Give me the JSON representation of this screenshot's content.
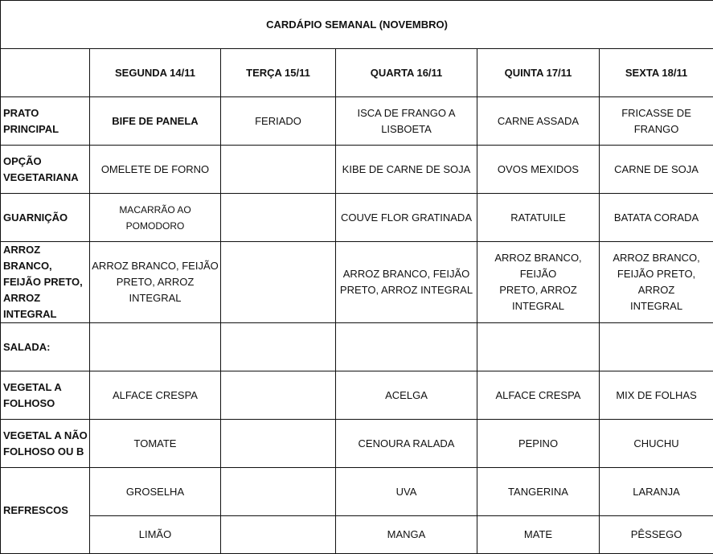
{
  "title": "CARDÁPIO SEMANAL (NOVEMBRO)",
  "days": [
    "SEGUNDA 14/11",
    "TERÇA 15/11",
    "QUARTA 16/11",
    "QUINTA 17/11",
    "SEXTA 18/11"
  ],
  "rows": [
    {
      "label": "PRATO\nPRINCIPAL",
      "cells": [
        "BIFE DE PANELA",
        "FERIADO",
        "ISCA DE FRANGO A LISBOETA",
        "CARNE ASSADA",
        "FRICASSE DE FRANGO"
      ]
    },
    {
      "label": "OPÇÃO\nVEGETARIANA",
      "cells": [
        "OMELETE DE FORNO",
        "",
        "KIBE DE CARNE DE SOJA",
        "OVOS MEXIDOS",
        "CARNE DE SOJA"
      ]
    },
    {
      "label": "GUARNIÇÃO",
      "cells": [
        "MACARRÃO AO POMODORO",
        "",
        "COUVE FLOR GRATINADA",
        "RATATUILE",
        "BATATA CORADA"
      ]
    },
    {
      "label": "ARROZ BRANCO,\nFEIJÃO PRETO,\nARROZ INTEGRAL",
      "cells": [
        "ARROZ BRANCO, FEIJÃO\nPRETO, ARROZ INTEGRAL",
        "",
        "ARROZ BRANCO, FEIJÃO\nPRETO, ARROZ INTEGRAL",
        "ARROZ BRANCO, FEIJÃO\nPRETO, ARROZ\nINTEGRAL",
        "ARROZ BRANCO,\nFEIJÃO PRETO, ARROZ\nINTEGRAL"
      ]
    },
    {
      "label": "SALADA:",
      "cells": [
        "",
        "",
        "",
        "",
        ""
      ]
    },
    {
      "label": "VEGETAL A\nFOLHOSO",
      "cells": [
        "ALFACE CRESPA",
        "",
        "ACELGA",
        "ALFACE CRESPA",
        "MIX DE FOLHAS"
      ]
    },
    {
      "label": "VEGETAL A NÃO\nFOLHOSO OU B",
      "cells": [
        "TOMATE",
        "",
        "CENOURA RALADA",
        "PEPINO",
        "CHUCHU"
      ]
    }
  ],
  "refrescos": {
    "label": "REFRESCOS",
    "row1": [
      "GROSELHA",
      "",
      "UVA",
      "TANGERINA",
      "LARANJA"
    ],
    "row2": [
      "LIMÃO",
      "",
      "MANGA",
      "MATE",
      "PÊSSEGO"
    ]
  }
}
